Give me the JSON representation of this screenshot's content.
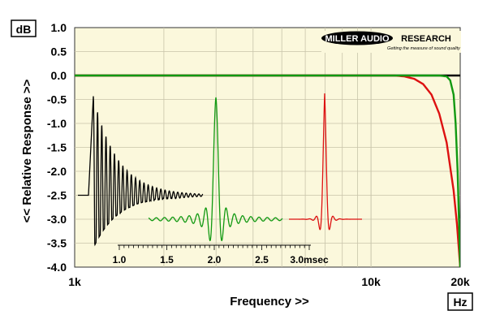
{
  "chart_data": {
    "type": "line",
    "xlabel": "Frequency >>",
    "ylabel": "<< Relative Response >>",
    "y_unit": "dB",
    "x_unit": "Hz",
    "x_scale": "log",
    "xlim": [
      1000,
      20000
    ],
    "ylim": [
      -4.0,
      1.0
    ],
    "x_ticks": [
      {
        "value": 1000,
        "label": "1k"
      },
      {
        "value": 10000,
        "label": "10k"
      },
      {
        "value": 20000,
        "label": "20k"
      }
    ],
    "y_ticks": [
      {
        "value": 1.0,
        "label": "1.0"
      },
      {
        "value": 0.5,
        "label": "0.5"
      },
      {
        "value": 0.0,
        "label": "0.0"
      },
      {
        "value": -0.5,
        "label": "-0.5"
      },
      {
        "value": -1.0,
        "label": "-1.0"
      },
      {
        "value": -1.5,
        "label": "-1.5"
      },
      {
        "value": -2.0,
        "label": "-2.0"
      },
      {
        "value": -2.5,
        "label": "-2.5"
      },
      {
        "value": -3.0,
        "label": "-3.0"
      },
      {
        "value": -3.5,
        "label": "-3.5"
      },
      {
        "value": -4.0,
        "label": "-4.0"
      }
    ],
    "grid": true,
    "series": [
      {
        "color": "#000000",
        "x": [
          1000,
          20000
        ],
        "y": [
          0.0,
          0.0
        ]
      },
      {
        "color": "#dd1111",
        "x": [
          1000,
          10000,
          12000,
          13000,
          14000,
          15000,
          16000,
          17000,
          18000,
          19000,
          19500,
          20000
        ],
        "y": [
          0.0,
          0.0,
          0.0,
          -0.02,
          -0.07,
          -0.18,
          -0.4,
          -0.8,
          -1.4,
          -2.4,
          -3.1,
          -4.0
        ]
      },
      {
        "color": "#119911",
        "x": [
          1000,
          17000,
          18000,
          18500,
          19000,
          19300,
          19600,
          19800,
          20000
        ],
        "y": [
          0.0,
          0.0,
          -0.02,
          -0.1,
          -0.4,
          -1.0,
          -2.0,
          -3.0,
          -4.0
        ]
      }
    ],
    "inset": {
      "title": "",
      "unit": "msec",
      "ticks": [
        {
          "value": 1.0,
          "label": "1.0"
        },
        {
          "value": 1.5,
          "label": "1.5"
        },
        {
          "value": 2.0,
          "label": "2.0"
        },
        {
          "value": 2.5,
          "label": "2.5"
        },
        {
          "value": 3.0,
          "label": "3.0"
        }
      ],
      "xlim": [
        1.0,
        3.0
      ],
      "impulses": [
        {
          "color": "#000000",
          "peak_ms": 0.85,
          "style": "minimum-phase-ringing"
        },
        {
          "color": "#119911",
          "peak_ms": 2.0,
          "style": "linear-phase"
        },
        {
          "color": "#dd1111",
          "peak_ms": 3.2,
          "style": "apodizing"
        }
      ]
    }
  },
  "logo": {
    "brand_left": "MILLER AUDIO",
    "brand_right": "RESEARCH",
    "tagline": "Getting the measure of sound quality"
  },
  "colors": {
    "plot_bg": "#fbf8dc",
    "grid": "#c8c4aa",
    "frame": "#333333"
  }
}
